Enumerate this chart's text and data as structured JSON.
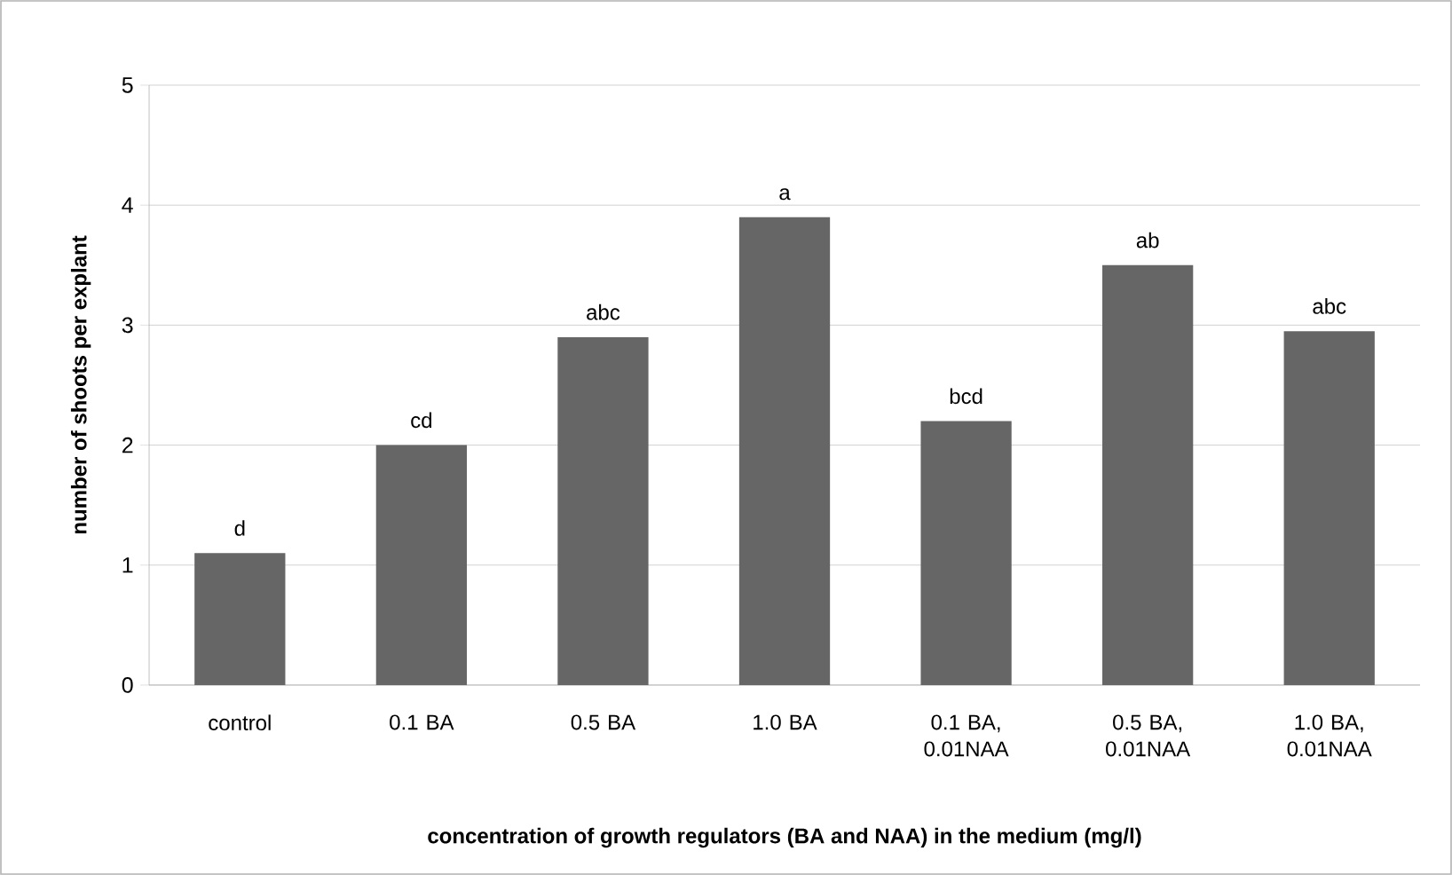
{
  "chart_data": {
    "type": "bar",
    "xlabel": "concentration of growth regulators (BA and NAA) in the medium (mg/l)",
    "ylabel": "number of shoots per explant",
    "categories": [
      "control",
      "0.1 BA",
      "0.5 BA",
      "1.0 BA",
      "0.1 BA, 0.01NAA",
      "0.5 BA, 0.01NAA",
      "1.0 BA, 0.01NAA"
    ],
    "values": [
      1.1,
      2.0,
      2.9,
      3.9,
      2.2,
      3.5,
      2.95
    ],
    "value_labels": [
      "d",
      "cd",
      "abc",
      "a",
      "bcd",
      "ab",
      "abc"
    ],
    "color": "#666666",
    "ylim": [
      0,
      5
    ],
    "yticks": [
      0,
      1,
      2,
      3,
      4,
      5
    ],
    "grid": "y"
  }
}
